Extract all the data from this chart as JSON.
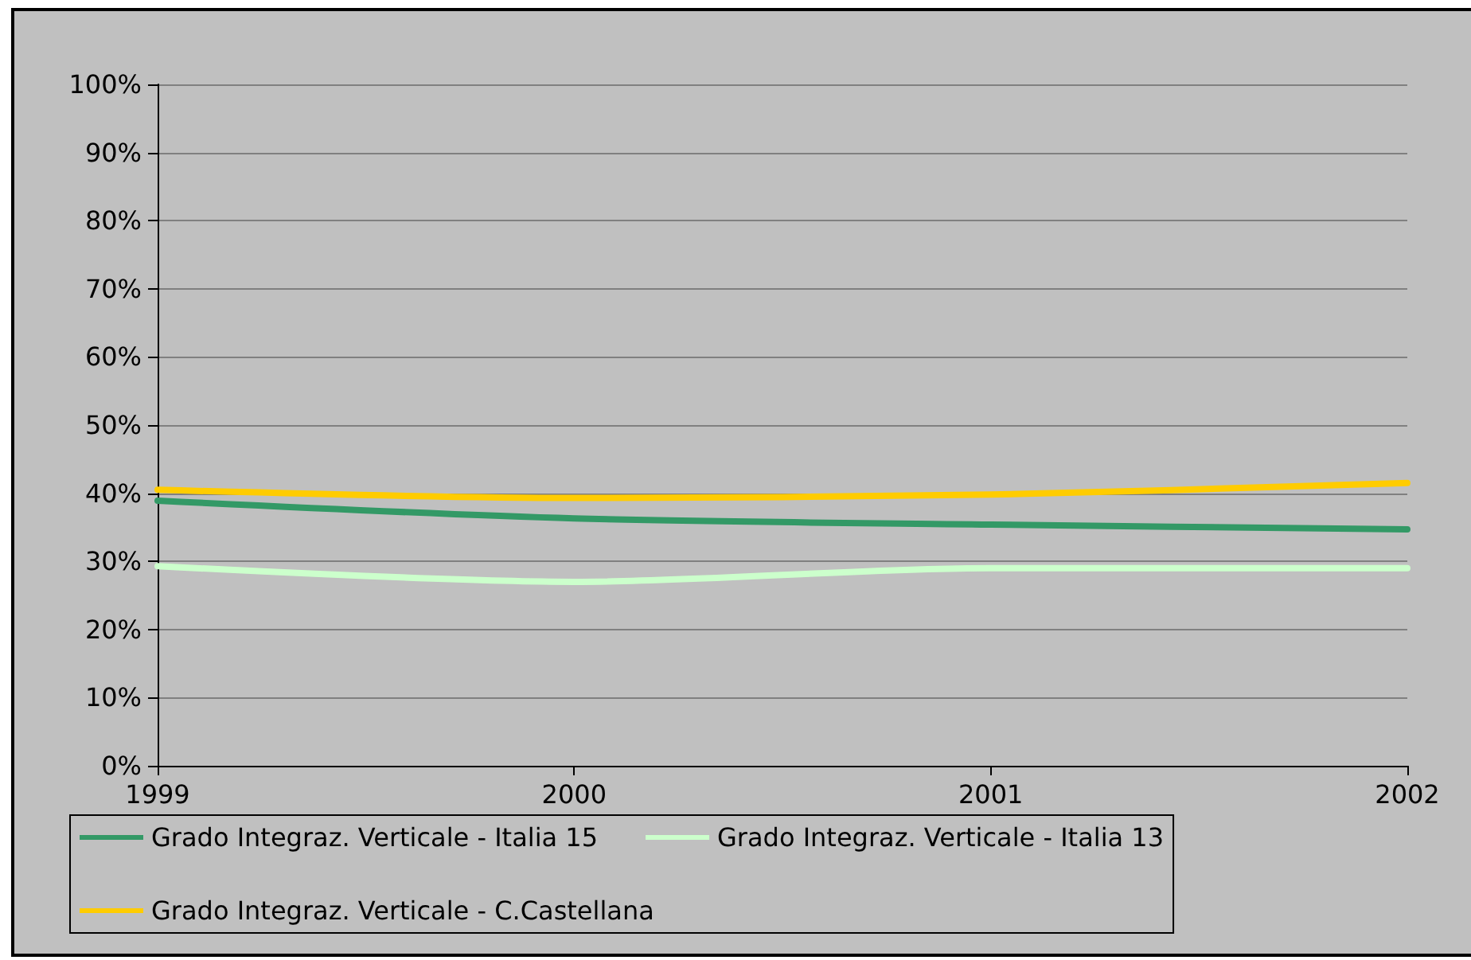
{
  "chart_data": {
    "type": "line",
    "x": [
      1999,
      2000,
      2001,
      2002
    ],
    "series": [
      {
        "name": "Grado Integraz. Verticale - Italia 15",
        "color": "#339966",
        "values": [
          38.9,
          36.3,
          35.4,
          34.7
        ]
      },
      {
        "name": "Grado Integraz. Verticale - Italia 13",
        "color": "#ccffcc",
        "values": [
          29.3,
          27.0,
          29.0,
          29.0
        ]
      },
      {
        "name": "Grado Integraz. Verticale - C.Castellana",
        "color": "#ffcc00",
        "values": [
          40.5,
          39.3,
          39.8,
          41.5
        ]
      }
    ],
    "xlim": [
      1999,
      2002
    ],
    "xticks": [
      1999,
      2000,
      2001,
      2002
    ],
    "ylim": [
      0,
      100
    ],
    "yticks": [
      {
        "value": 0,
        "label": "0%"
      },
      {
        "value": 10,
        "label": "10%"
      },
      {
        "value": 20,
        "label": "20%"
      },
      {
        "value": 30,
        "label": "30%"
      },
      {
        "value": 40,
        "label": "40%"
      },
      {
        "value": 50,
        "label": "50%"
      },
      {
        "value": 60,
        "label": "60%"
      },
      {
        "value": 70,
        "label": "70%"
      },
      {
        "value": 80,
        "label": "80%"
      },
      {
        "value": 90,
        "label": "90%"
      },
      {
        "value": 100,
        "label": "100%"
      }
    ],
    "grid": "y",
    "legend": "bottom",
    "marker": "none",
    "line_style": "solid"
  }
}
